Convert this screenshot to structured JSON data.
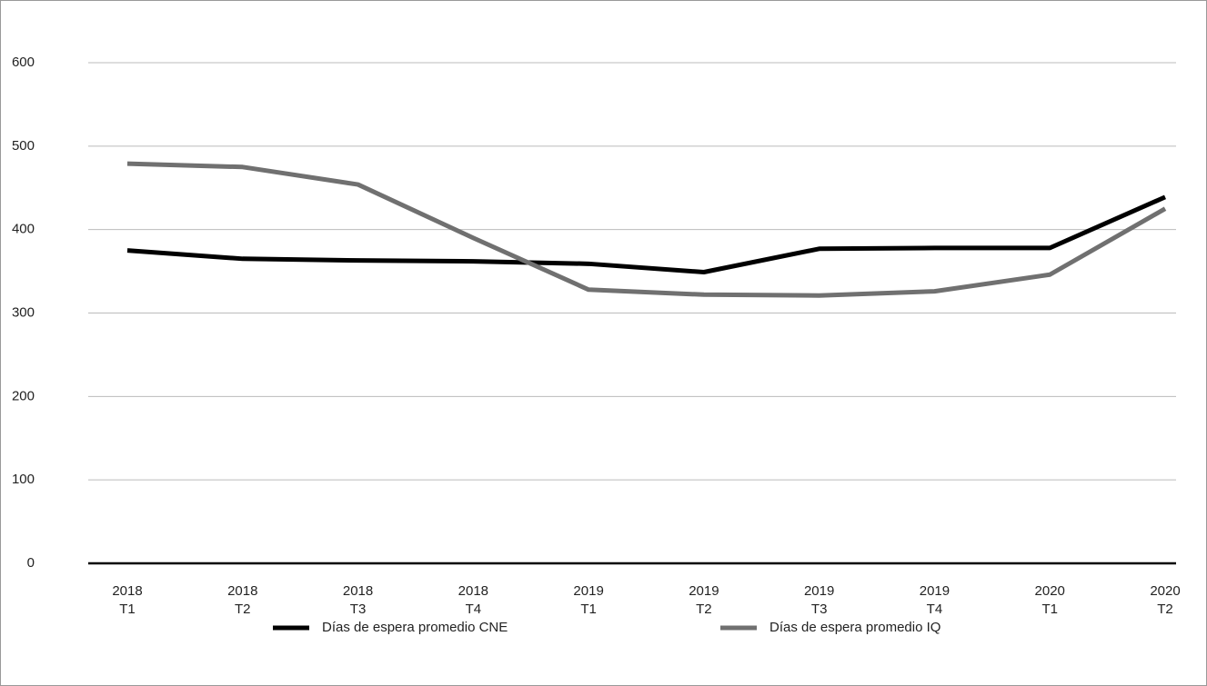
{
  "chart_data": {
    "type": "line",
    "categories": [
      [
        "2018",
        "T1"
      ],
      [
        "2018",
        "T2"
      ],
      [
        "2018",
        "T3"
      ],
      [
        "2018",
        "T4"
      ],
      [
        "2019",
        "T1"
      ],
      [
        "2019",
        "T2"
      ],
      [
        "2019",
        "T3"
      ],
      [
        "2019",
        "T4"
      ],
      [
        "2020",
        "T1"
      ],
      [
        "2020",
        "T2"
      ]
    ],
    "series": [
      {
        "name": "Días de espera promedio CNE",
        "color": "#000000",
        "values": [
          375,
          365,
          363,
          362,
          359,
          349,
          377,
          378,
          378,
          439
        ]
      },
      {
        "name": "Días de espera promedio IQ",
        "color": "#707070",
        "values": [
          479,
          475,
          454,
          390,
          328,
          322,
          321,
          326,
          346,
          425
        ]
      }
    ],
    "ylim": [
      0,
      600
    ],
    "yticks": [
      0,
      100,
      200,
      300,
      400,
      500,
      600
    ],
    "grid": true,
    "legend": "bottom"
  }
}
